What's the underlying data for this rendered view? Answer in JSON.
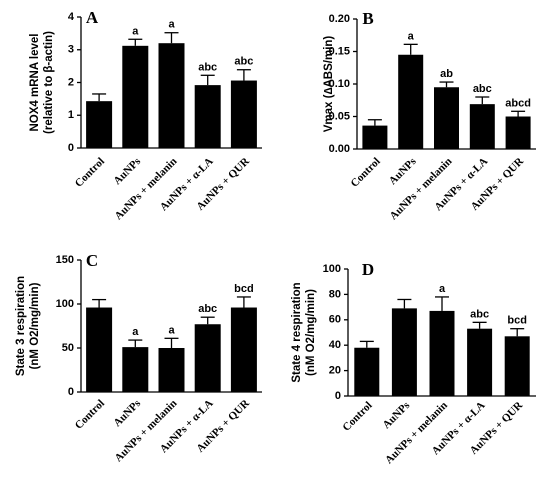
{
  "categories": [
    "Control",
    "AuNPs",
    "AuNPs + melanin",
    "AuNPs + α-LA",
    "AuNPs + QUR"
  ],
  "chart_data": [
    {
      "type": "bar",
      "panel": "A",
      "ylabel_lines": [
        "NOX4 mRNA level",
        "(relative to β-actin)"
      ],
      "ylim": [
        0,
        4
      ],
      "ticks": [
        "0",
        "1",
        "2",
        "3",
        "4"
      ],
      "tick_values": [
        0,
        1,
        2,
        3,
        4
      ],
      "values": [
        1.43,
        3.12,
        3.2,
        1.92,
        2.06
      ],
      "errors": [
        0.22,
        0.2,
        0.32,
        0.3,
        0.33
      ],
      "labels": [
        "",
        "a",
        "a",
        "abc",
        "abc"
      ]
    },
    {
      "type": "bar",
      "panel": "B",
      "ylabel_lines": [
        "Vmax (∆ABS/min)"
      ],
      "ylim": [
        0,
        0.2
      ],
      "ticks": [
        "0.00",
        "0.05",
        "0.10",
        "0.15",
        "0.20"
      ],
      "tick_values": [
        0,
        0.05,
        0.1,
        0.15,
        0.2
      ],
      "values": [
        0.036,
        0.145,
        0.095,
        0.069,
        0.05
      ],
      "errors": [
        0.009,
        0.016,
        0.008,
        0.011,
        0.008
      ],
      "labels": [
        "",
        "a",
        "ab",
        "abc",
        "abcd"
      ]
    },
    {
      "type": "bar",
      "panel": "C",
      "ylabel_lines": [
        "State 3 respiration",
        "(nM O2/mg/min)"
      ],
      "ylim": [
        0,
        150
      ],
      "ticks": [
        "0",
        "50",
        "100",
        "150"
      ],
      "tick_values": [
        0,
        50,
        100,
        150
      ],
      "values": [
        96,
        51,
        50,
        77,
        96
      ],
      "errors": [
        9,
        8,
        11,
        8,
        12
      ],
      "labels": [
        "",
        "a",
        "a",
        "abc",
        "bcd"
      ]
    },
    {
      "type": "bar",
      "panel": "D",
      "ylabel_lines": [
        "State 4 respiration",
        "(nM O2/mg/min)"
      ],
      "ylim": [
        0,
        100
      ],
      "ticks": [
        "0",
        "20",
        "40",
        "60",
        "80",
        "100"
      ],
      "tick_values": [
        0,
        20,
        40,
        60,
        80,
        100
      ],
      "values": [
        38,
        69,
        67,
        53,
        47
      ],
      "errors": [
        5,
        7,
        11,
        5,
        6
      ],
      "labels": [
        "",
        "",
        "a",
        "abc",
        "bcd"
      ]
    }
  ]
}
